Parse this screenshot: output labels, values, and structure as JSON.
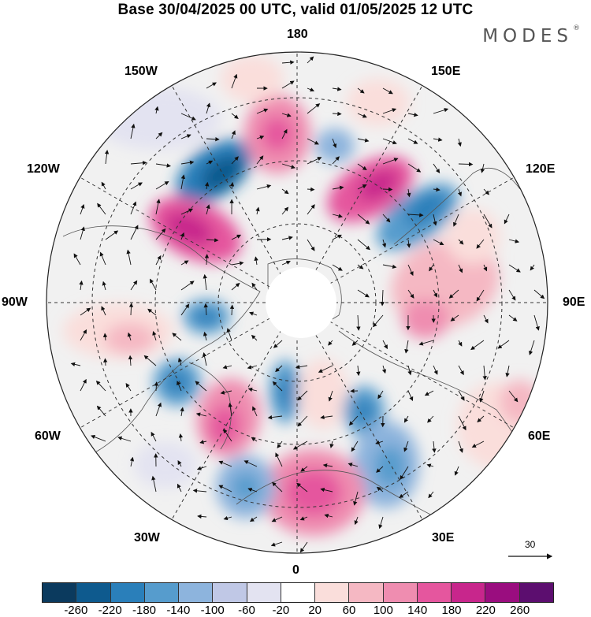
{
  "title": "Base 30/04/2025 00 UTC, valid 01/05/2025 12 UTC",
  "brand": {
    "name": "MODES",
    "mark": "®"
  },
  "map": {
    "projection": "north-polar-stereographic",
    "meridian_labels": {
      "lon_180": "180",
      "lon_150e": "150E",
      "lon_120e": "120E",
      "lon_90e": "90E",
      "lon_60e": "60E",
      "lon_30e": "30E",
      "lon_0": "0",
      "lon_30w": "30W",
      "lon_60w": "60W",
      "lon_90w": "90W",
      "lon_120w": "120W",
      "lon_150w": "150W"
    },
    "reference_vector": "30",
    "features": [
      "wind-vectors",
      "anomaly-shading",
      "coastlines",
      "graticule"
    ]
  },
  "colorbar": {
    "colors": [
      "#0b3a5e",
      "#0e5a8e",
      "#2a7fba",
      "#569ccd",
      "#8db4dd",
      "#c0c8e6",
      "#e3e3f1",
      "#ffffff",
      "#fadedb",
      "#f5b8c3",
      "#ef8db0",
      "#e5569e",
      "#c8268c",
      "#9a0d7f",
      "#5c0e6f"
    ],
    "ticks": [
      "-260",
      "-220",
      "-180",
      "-140",
      "-100",
      "-60",
      "-20",
      "20",
      "60",
      "100",
      "140",
      "180",
      "220",
      "260"
    ]
  }
}
